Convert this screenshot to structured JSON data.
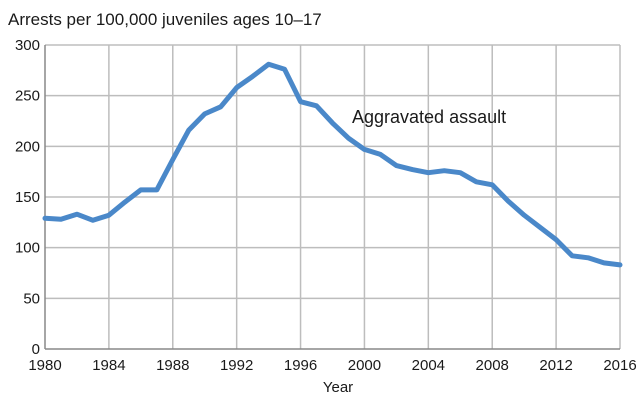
{
  "chart_data": {
    "type": "line",
    "title": "Arrests per 100,000 juveniles ages 10–17",
    "xlabel": "Year",
    "ylabel": "",
    "xlim": [
      1980,
      2016
    ],
    "ylim": [
      0,
      300
    ],
    "xticks": [
      1980,
      1984,
      1988,
      1992,
      1996,
      2000,
      2004,
      2008,
      2012,
      2016
    ],
    "yticks": [
      0,
      50,
      100,
      150,
      200,
      250,
      300
    ],
    "grid": true,
    "colors": {
      "line": "#4a88c9",
      "grid": "#bdbdbd",
      "axis": "#888888"
    },
    "series": [
      {
        "name": "Aggravated assault",
        "x": [
          1980,
          1981,
          1982,
          1983,
          1984,
          1985,
          1986,
          1987,
          1988,
          1989,
          1990,
          1991,
          1992,
          1993,
          1994,
          1995,
          1996,
          1997,
          1998,
          1999,
          2000,
          2001,
          2002,
          2003,
          2004,
          2005,
          2006,
          2007,
          2008,
          2009,
          2010,
          2011,
          2012,
          2013,
          2014,
          2015,
          2016
        ],
        "values": [
          129,
          128,
          133,
          127,
          132,
          145,
          157,
          157,
          187,
          216,
          232,
          239,
          258,
          269,
          281,
          276,
          244,
          240,
          223,
          208,
          197,
          192,
          181,
          177,
          174,
          176,
          174,
          165,
          162,
          146,
          132,
          120,
          108,
          92,
          90,
          85,
          83
        ]
      }
    ]
  }
}
